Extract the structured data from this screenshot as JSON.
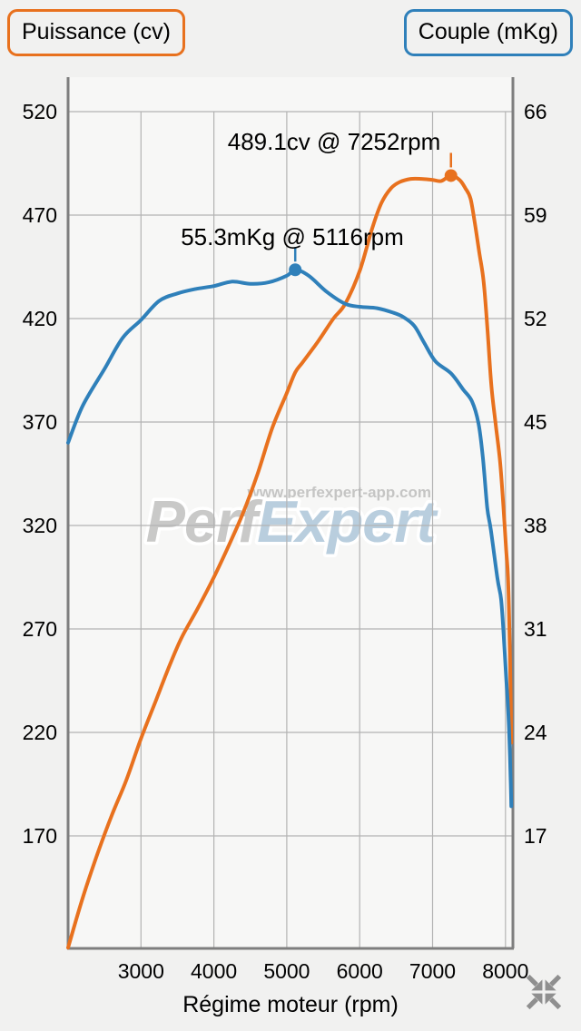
{
  "legend": {
    "power_label": "Puissance (cv)",
    "torque_label": "Couple (mKg)"
  },
  "watermark": {
    "brand_gray": "Perf",
    "brand_blue": "Expert",
    "url": "www.perfexpert-app.com"
  },
  "footer": {
    "collapse_icon": "collapse-arrows-icon",
    "icon_color": "#8f8f8f"
  },
  "chart_data": {
    "type": "line",
    "title": "",
    "xlabel": "Régime moteur (rpm)",
    "grid": true,
    "xlim": [
      2000,
      8102
    ],
    "x_ticks": [
      3000,
      4000,
      5000,
      6000,
      7000,
      8000
    ],
    "left_axis": {
      "name": "Puissance (cv)",
      "ticks": [
        520,
        470,
        420,
        370,
        320,
        270,
        220,
        170
      ],
      "color": "#e8711e"
    },
    "right_axis": {
      "name": "Couple (mKg)",
      "ticks": [
        66,
        59,
        52,
        45,
        38,
        31,
        24,
        17
      ],
      "color": "#2f80ba"
    },
    "annotations": {
      "power_peak": {
        "text": "489.1cv @ 7252rpm",
        "rpm": 7252,
        "value": 489.1
      },
      "torque_peak": {
        "text": "55.3mKg @ 5116rpm",
        "rpm": 5116,
        "value": 55.3
      }
    },
    "series": [
      {
        "name": "Puissance (cv)",
        "axis": "power",
        "color": "#e8711e",
        "points": [
          [
            2000,
            116
          ],
          [
            2200,
            140
          ],
          [
            2400,
            161
          ],
          [
            2600,
            180
          ],
          [
            2800,
            197
          ],
          [
            3000,
            217
          ],
          [
            3200,
            235
          ],
          [
            3400,
            253
          ],
          [
            3560,
            266
          ],
          [
            3780,
            280
          ],
          [
            4000,
            295
          ],
          [
            4200,
            310
          ],
          [
            4400,
            326
          ],
          [
            4600,
            345
          ],
          [
            4800,
            367
          ],
          [
            5000,
            384
          ],
          [
            5116,
            394
          ],
          [
            5220,
            399
          ],
          [
            5430,
            409
          ],
          [
            5640,
            420
          ],
          [
            5800,
            427
          ],
          [
            6000,
            443
          ],
          [
            6175,
            464
          ],
          [
            6300,
            476
          ],
          [
            6430,
            483
          ],
          [
            6550,
            486
          ],
          [
            6700,
            487.5
          ],
          [
            6850,
            487.5
          ],
          [
            7000,
            487
          ],
          [
            7120,
            486.5
          ],
          [
            7252,
            489.1
          ],
          [
            7370,
            487
          ],
          [
            7450,
            483
          ],
          [
            7520,
            478
          ],
          [
            7580,
            466
          ],
          [
            7640,
            452
          ],
          [
            7700,
            438
          ],
          [
            7755,
            414
          ],
          [
            7805,
            388
          ],
          [
            7865,
            369
          ],
          [
            7925,
            351
          ],
          [
            7970,
            330
          ],
          [
            8010,
            308
          ],
          [
            8035,
            295
          ],
          [
            8055,
            268
          ],
          [
            8070,
            240
          ],
          [
            8080,
            215
          ]
        ]
      },
      {
        "name": "Couple (mKg)",
        "axis": "torque",
        "color": "#2f80ba",
        "points": [
          [
            2000,
            43.6
          ],
          [
            2200,
            46.1
          ],
          [
            2500,
            48.6
          ],
          [
            2750,
            50.7
          ],
          [
            3000,
            51.9
          ],
          [
            3250,
            53.2
          ],
          [
            3500,
            53.7
          ],
          [
            3750,
            54.0
          ],
          [
            4000,
            54.2
          ],
          [
            4250,
            54.5
          ],
          [
            4500,
            54.35
          ],
          [
            4750,
            54.45
          ],
          [
            5000,
            54.9
          ],
          [
            5116,
            55.3
          ],
          [
            5300,
            54.9
          ],
          [
            5550,
            53.8
          ],
          [
            5800,
            53.0
          ],
          [
            6000,
            52.8
          ],
          [
            6240,
            52.7
          ],
          [
            6460,
            52.4
          ],
          [
            6600,
            52.1
          ],
          [
            6750,
            51.5
          ],
          [
            6880,
            50.4
          ],
          [
            7040,
            49.1
          ],
          [
            7252,
            48.3
          ],
          [
            7420,
            47.2
          ],
          [
            7540,
            46.4
          ],
          [
            7630,
            44.9
          ],
          [
            7690,
            42.6
          ],
          [
            7750,
            39.2
          ],
          [
            7800,
            37.7
          ],
          [
            7890,
            34.4
          ],
          [
            7940,
            33.0
          ],
          [
            7975,
            30.6
          ],
          [
            8010,
            27.7
          ],
          [
            8035,
            25.7
          ],
          [
            8055,
            23.4
          ],
          [
            8070,
            21.0
          ],
          [
            8080,
            19.0
          ]
        ]
      }
    ]
  }
}
